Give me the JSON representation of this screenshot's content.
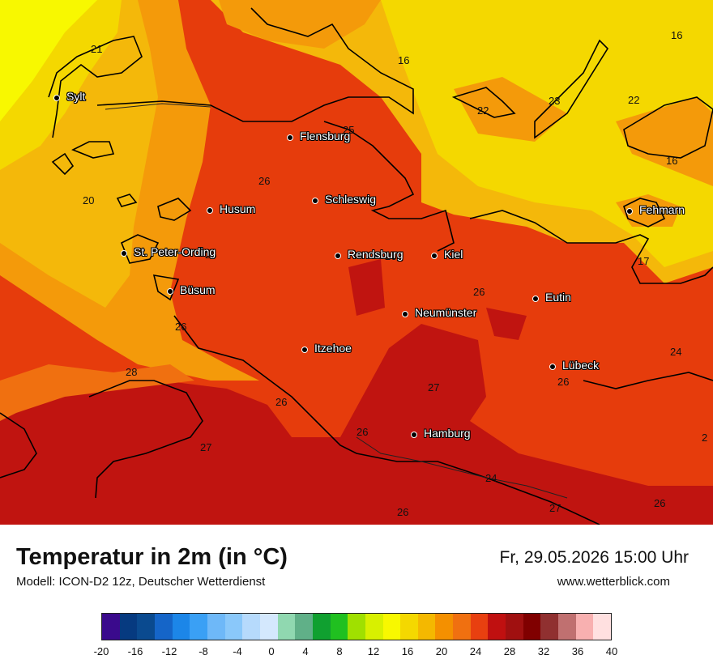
{
  "header": {
    "title": "Temperatur in 2m (in °C)",
    "subtitle": "Modell: ICON-D2 12z, Deutscher Wetterdienst",
    "datetime": "Fr, 29.05.2026 15:00 Uhr",
    "website": "www.wetterblick.com"
  },
  "cities": [
    {
      "name": "Sylt"
    },
    {
      "name": "Flensburg"
    },
    {
      "name": "Schleswig"
    },
    {
      "name": "Husum"
    },
    {
      "name": "Fehmarn"
    },
    {
      "name": "St. Peter-Ording"
    },
    {
      "name": "Rendsburg"
    },
    {
      "name": "Kiel"
    },
    {
      "name": "Büsum"
    },
    {
      "name": "Eutin"
    },
    {
      "name": "Neumünster"
    },
    {
      "name": "Itzehoe"
    },
    {
      "name": "Lübeck"
    },
    {
      "name": "Hamburg"
    }
  ],
  "value_labels": [
    "21",
    "16",
    "16",
    "25",
    "22",
    "23",
    "22",
    "16",
    "26",
    "20",
    "26",
    "17",
    "26",
    "26",
    "24",
    "28",
    "26",
    "27",
    "26",
    "26",
    "27",
    "24",
    "27",
    "26",
    "2"
  ],
  "legend": {
    "ticks": [
      "-20",
      "-16",
      "-12",
      "-8",
      "-4",
      "0",
      "4",
      "8",
      "12",
      "16",
      "20",
      "24",
      "28",
      "32",
      "36",
      "40"
    ],
    "colors": [
      "#3a0a8c",
      "#063a80",
      "#0a4a8f",
      "#1565c8",
      "#1c86e8",
      "#3aa0f5",
      "#6eb8f8",
      "#8ac8fa",
      "#b6dafc",
      "#d4e8fd",
      "#90d8b0",
      "#60b088",
      "#10a030",
      "#20c020",
      "#a0e000",
      "#d8f000",
      "#f8f800",
      "#f4d800",
      "#f4b800",
      "#f49000",
      "#f07010",
      "#e84010",
      "#c01010",
      "#a01010",
      "#800000",
      "#903030",
      "#c07070",
      "#f8b0b0",
      "#ffe0e0"
    ]
  }
}
